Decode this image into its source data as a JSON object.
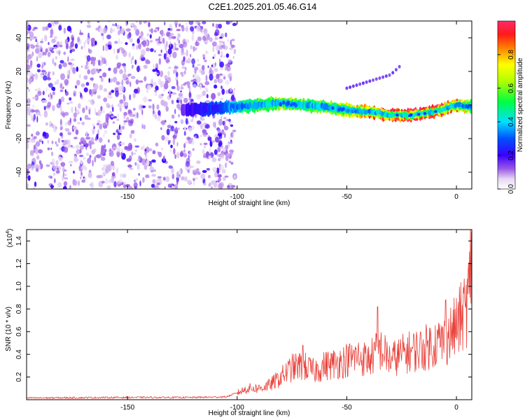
{
  "title": "C2E1.2025.201.05.46.G14",
  "chart_data": [
    {
      "type": "heatmap",
      "xlabel": "Height of straight line (km)",
      "ylabel": "Frequency (Hz)",
      "xlim": [
        -196,
        7
      ],
      "ylim": [
        -50,
        50
      ],
      "xticks": [
        -150,
        -100,
        -50,
        0
      ],
      "yticks": [
        -40,
        -20,
        0,
        20,
        40
      ],
      "colorbar": {
        "label": "Normalized spectral amplitude",
        "range": [
          0,
          1
        ],
        "ticks": [
          0.0,
          0.2,
          0.4,
          0.6,
          0.8
        ],
        "tick_labels": [
          "0.0",
          "0.2",
          "0.4",
          "0.6",
          "0.8"
        ]
      },
      "noise_region": {
        "x_range": [
          -196,
          -101
        ],
        "y_range": [
          -50,
          50
        ],
        "amplitude_range": [
          0.05,
          0.22
        ]
      },
      "signal_track": {
        "x": [
          -125,
          -110,
          -100,
          -90,
          -80,
          -70,
          -60,
          -50,
          -40,
          -30,
          -20,
          -10,
          0,
          7
        ],
        "freq": [
          -3,
          -2,
          -1,
          0,
          1,
          0,
          -1,
          -3,
          -4,
          -6,
          -6,
          -4,
          0,
          -1
        ],
        "amplitude": [
          0.15,
          0.3,
          0.45,
          0.55,
          0.65,
          0.6,
          0.55,
          0.7,
          0.8,
          0.9,
          0.95,
          0.92,
          0.8,
          0.6
        ]
      },
      "faint_feature": {
        "x": [
          -50,
          -30,
          -25
        ],
        "freq": [
          10,
          18,
          24
        ],
        "amplitude": 0.15
      }
    },
    {
      "type": "line",
      "xlabel": "Height of straight line (km)",
      "ylabel": "SNR (10 * v/v)",
      "y_multiplier": "(x10",
      "y_multiplier_exp": "4",
      "y_multiplier_close": ")",
      "xlim": [
        -196,
        7
      ],
      "ylim": [
        0,
        1.5
      ],
      "xticks": [
        -150,
        -100,
        -50,
        0
      ],
      "yticks": [
        0.2,
        0.4,
        0.6,
        0.8,
        1.0,
        1.2,
        1.4
      ],
      "ytick_labels": [
        "0.2",
        "0.4",
        "0.6",
        "0.8",
        "1.0",
        "1.2",
        "1.4"
      ],
      "color": "#e8413a",
      "series": [
        {
          "x": [
            -196,
            -150,
            -120,
            -105,
            -100,
            -95,
            -90,
            -85,
            -80,
            -75,
            -70,
            -65,
            -60,
            -55,
            -50,
            -45,
            -40,
            -35,
            -30,
            -25,
            -20,
            -15,
            -10,
            -5,
            0,
            3,
            5,
            6,
            7
          ],
          "y": [
            0.015,
            0.02,
            0.02,
            0.025,
            0.06,
            0.1,
            0.1,
            0.13,
            0.2,
            0.28,
            0.3,
            0.25,
            0.3,
            0.32,
            0.35,
            0.38,
            0.35,
            0.45,
            0.35,
            0.4,
            0.43,
            0.45,
            0.5,
            0.52,
            0.65,
            0.75,
            0.85,
            1.0,
            1.45
          ]
        }
      ],
      "spikes": [
        {
          "x": -70,
          "y": 0.48
        },
        {
          "x": -36,
          "y": 0.82
        },
        {
          "x": -5,
          "y": 0.88
        },
        {
          "x": 7,
          "y": 1.48
        }
      ]
    }
  ]
}
